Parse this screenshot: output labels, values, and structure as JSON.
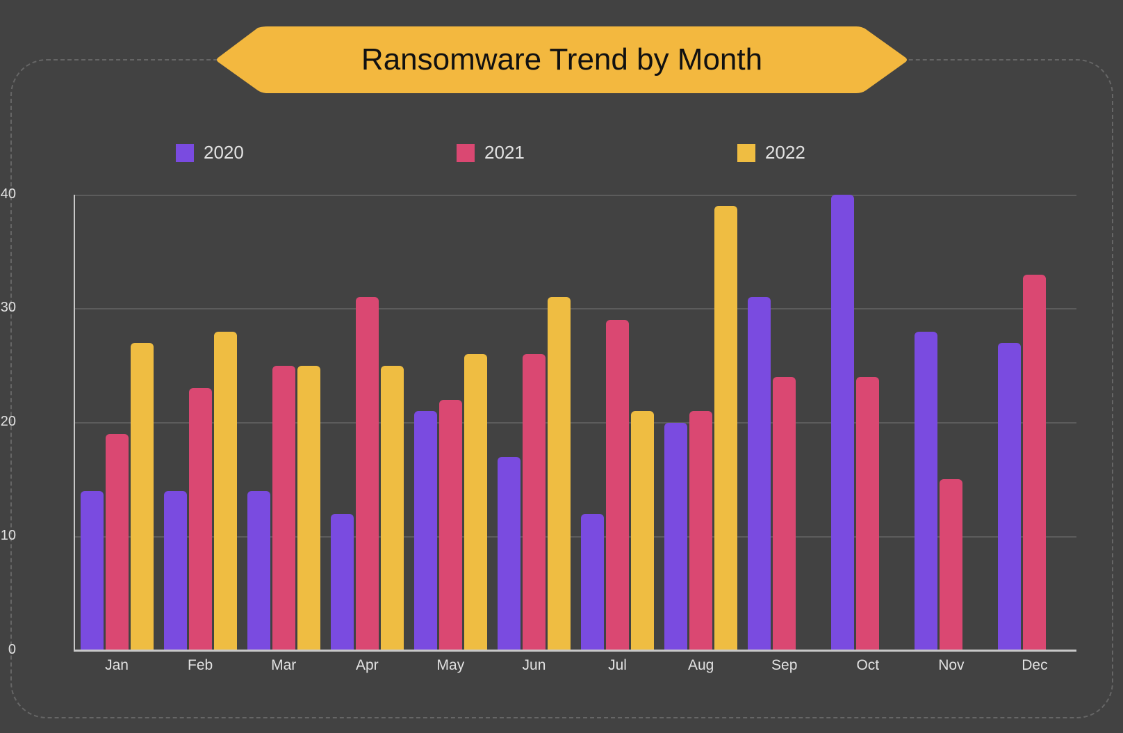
{
  "title": "Ransomware Trend by Month",
  "colors": {
    "background": "#424242",
    "banner": "#F3B83F",
    "s2020": "#7A4BE0",
    "s2021": "#DA4872",
    "s2022": "#EFBD42",
    "grid": "#5c5c5c",
    "axis": "#c8c8c8",
    "text": "#e2e2e2"
  },
  "legend": [
    {
      "label": "2020",
      "color": "#7A4BE0"
    },
    {
      "label": "2021",
      "color": "#DA4872"
    },
    {
      "label": "2022",
      "color": "#EFBD42"
    }
  ],
  "y_ticks": [
    "0",
    "10",
    "20",
    "30",
    "40"
  ],
  "chart_data": {
    "type": "bar",
    "title": "Ransomware Trend by Month",
    "xlabel": "",
    "ylabel": "",
    "ylim": [
      0,
      40
    ],
    "grid": true,
    "legend_position": "top",
    "categories": [
      "Jan",
      "Feb",
      "Mar",
      "Apr",
      "May",
      "Jun",
      "Jul",
      "Aug",
      "Sep",
      "Oct",
      "Nov",
      "Dec"
    ],
    "series": [
      {
        "name": "2020",
        "color": "#7A4BE0",
        "values": [
          14,
          14,
          14,
          12,
          21,
          17,
          12,
          20,
          31,
          40,
          28,
          27
        ]
      },
      {
        "name": "2021",
        "color": "#DA4872",
        "values": [
          19,
          23,
          25,
          31,
          22,
          26,
          29,
          21,
          24,
          24,
          15,
          33
        ]
      },
      {
        "name": "2022",
        "color": "#EFBD42",
        "values": [
          27,
          28,
          25,
          25,
          26,
          31,
          21,
          39,
          null,
          null,
          null,
          null
        ]
      }
    ]
  }
}
